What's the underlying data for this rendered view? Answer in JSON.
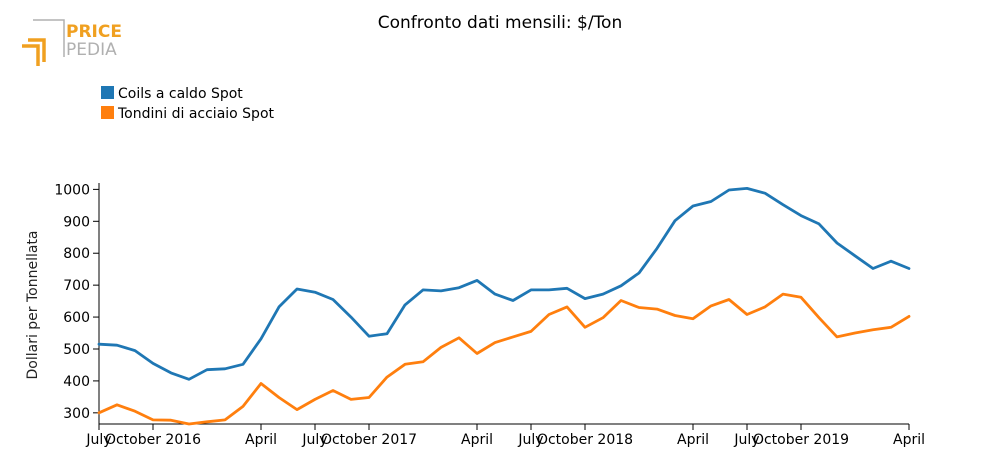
{
  "logo": {
    "line1": "PRICE",
    "line2": "PEDIA",
    "accent": "#f0a020",
    "muted": "#b0b0b0"
  },
  "chart_data": {
    "type": "line",
    "title": "Confronto dati mensili: $/Ton",
    "ylabel": "Dollari per Tonnellata",
    "xlabel": "",
    "ylim": [
      265,
      1020
    ],
    "yticks": [
      300,
      400,
      500,
      600,
      700,
      800,
      900,
      1000
    ],
    "xtick_labels": [
      {
        "index": 0,
        "label": "July"
      },
      {
        "index": 3,
        "label": "October 2016"
      },
      {
        "index": 9,
        "label": "April"
      },
      {
        "index": 12,
        "label": "July"
      },
      {
        "index": 15,
        "label": "October 2017"
      },
      {
        "index": 21,
        "label": "April"
      },
      {
        "index": 24,
        "label": "July"
      },
      {
        "index": 27,
        "label": "October 2018"
      },
      {
        "index": 33,
        "label": "April"
      },
      {
        "index": 36,
        "label": "July"
      },
      {
        "index": 39,
        "label": "October 2019"
      },
      {
        "index": 45,
        "label": "April"
      }
    ],
    "x": [
      "2016-07",
      "2016-08",
      "2016-09",
      "2016-10",
      "2016-11",
      "2016-12",
      "2017-01",
      "2017-02",
      "2017-03",
      "2017-04",
      "2017-05",
      "2017-06",
      "2017-07",
      "2017-08",
      "2017-09",
      "2017-10",
      "2017-11",
      "2017-12",
      "2018-01",
      "2018-02",
      "2018-03",
      "2018-04",
      "2018-05",
      "2018-06",
      "2018-07",
      "2018-08",
      "2018-09",
      "2018-10",
      "2018-11",
      "2018-12",
      "2019-01",
      "2019-02",
      "2019-03",
      "2019-04",
      "2019-05",
      "2019-06",
      "2019-07",
      "2019-08",
      "2019-09",
      "2019-10",
      "2019-11",
      "2019-12",
      "2020-01",
      "2020-02",
      "2020-03",
      "2020-04"
    ],
    "series": [
      {
        "name": "Coils a caldo Spot",
        "color": "#1f77b4",
        "values": [
          515,
          512,
          495,
          455,
          425,
          405,
          435,
          438,
          452,
          532,
          632,
          688,
          678,
          655,
          600,
          540,
          548,
          638,
          685,
          682,
          692,
          715,
          672,
          652,
          685,
          685,
          690,
          658,
          672,
          698,
          738,
          815,
          902,
          948,
          962,
          998,
          1003,
          988,
          952,
          918,
          892,
          832,
          792,
          752,
          775,
          752
        ]
      },
      {
        "name": "Tondini di acciaio Spot",
        "color": "#ff7f0e",
        "values": [
          300,
          325,
          305,
          278,
          277,
          265,
          272,
          278,
          320,
          392,
          348,
          310,
          342,
          370,
          342,
          348,
          412,
          452,
          460,
          505,
          535,
          486,
          520,
          538,
          555,
          608,
          632,
          568,
          598,
          652,
          630,
          625,
          605,
          595,
          635,
          655,
          608,
          632,
          672,
          662,
          598,
          538,
          550,
          560,
          568,
          602
        ]
      }
    ]
  }
}
